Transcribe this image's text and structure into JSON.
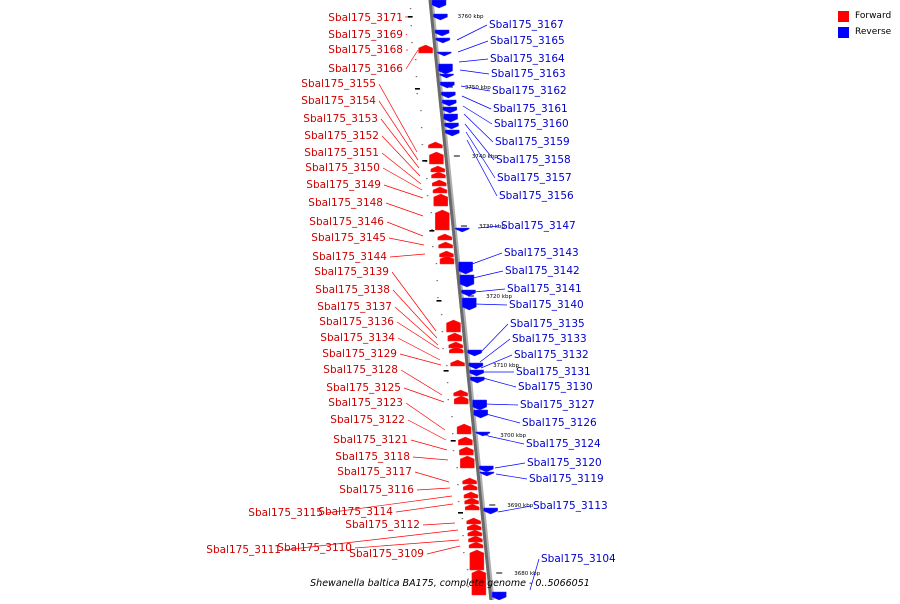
{
  "title": "Shewanella baltica BA175, complete genome",
  "range": "0..5066051",
  "legend": [
    {
      "label": "Forward",
      "color": "#ff0000"
    },
    {
      "label": "Reverse",
      "color": "#0000ff"
    }
  ],
  "colors": {
    "forward": "#ff0000",
    "reverse": "#0000ff",
    "forward_label": "#cc0000",
    "reverse_label": "#0000cc"
  },
  "ticks": [
    "3760 kbp",
    "3750 kbp",
    "3740 kbp",
    "3730 kbp",
    "3720 kbp",
    "3710 kbp",
    "3700 kbp",
    "3690 kbp",
    "3680 kbp"
  ],
  "forward_genes": [
    "Sbal175_3171",
    "Sbal175_3169",
    "Sbal175_3168",
    "Sbal175_3166",
    "Sbal175_3155",
    "Sbal175_3154",
    "Sbal175_3153",
    "Sbal175_3152",
    "Sbal175_3151",
    "Sbal175_3150",
    "Sbal175_3149",
    "Sbal175_3148",
    "Sbal175_3146",
    "Sbal175_3145",
    "Sbal175_3144",
    "Sbal175_3139",
    "Sbal175_3138",
    "Sbal175_3137",
    "Sbal175_3136",
    "Sbal175_3134",
    "Sbal175_3129",
    "Sbal175_3128",
    "Sbal175_3125",
    "Sbal175_3123",
    "Sbal175_3122",
    "Sbal175_3121",
    "Sbal175_3118",
    "Sbal175_3117",
    "Sbal175_3116",
    "Sbal175_3115",
    "Sbal175_3114",
    "Sbal175_3112",
    "Sbal175_3111",
    "Sbal175_3110",
    "Sbal175_3109"
  ],
  "reverse_genes": [
    "Sbal175_3167",
    "Sbal175_3165",
    "Sbal175_3164",
    "Sbal175_3163",
    "Sbal175_3162",
    "Sbal175_3161",
    "Sbal175_3160",
    "Sbal175_3159",
    "Sbal175_3158",
    "Sbal175_3157",
    "Sbal175_3156",
    "Sbal175_3147",
    "Sbal175_3143",
    "Sbal175_3142",
    "Sbal175_3141",
    "Sbal175_3140",
    "Sbal175_3135",
    "Sbal175_3133",
    "Sbal175_3132",
    "Sbal175_3131",
    "Sbal175_3130",
    "Sbal175_3127",
    "Sbal175_3126",
    "Sbal175_3124",
    "Sbal175_3120",
    "Sbal175_3119",
    "Sbal175_3113",
    "Sbal175_3104"
  ]
}
